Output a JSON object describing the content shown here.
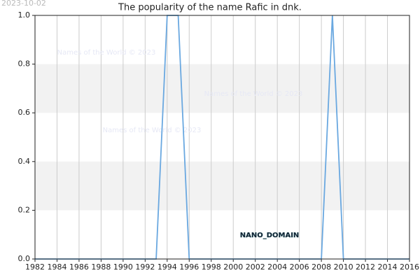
{
  "chart_data": {
    "type": "line",
    "title": "The popularity of the name Rafic in dnk.",
    "date_stamp": "2023-10-02",
    "watermarks": [
      "Names of the World © 2023",
      "Names of the World © 2023",
      "Names of the World © 2023"
    ],
    "annotation": "NANO_DOMAIN",
    "x": [
      1982,
      1983,
      1984,
      1985,
      1986,
      1987,
      1988,
      1989,
      1990,
      1991,
      1992,
      1993,
      1994,
      1995,
      1996,
      1997,
      1998,
      1999,
      2000,
      2001,
      2002,
      2003,
      2004,
      2005,
      2006,
      2007,
      2008,
      2009,
      2010,
      2011,
      2012,
      2013,
      2014,
      2015,
      2016
    ],
    "series": [
      {
        "color": "#6aa8e0",
        "values": [
          0,
          0,
          0,
          0,
          0,
          0,
          0,
          0,
          0,
          0,
          0,
          0,
          1,
          1,
          0,
          0,
          0,
          0,
          0,
          0,
          0,
          0,
          0,
          0,
          0,
          0,
          0,
          1,
          0,
          0,
          0,
          0,
          0,
          0,
          0
        ]
      }
    ],
    "xlim": [
      1982,
      2016
    ],
    "xticks": [
      1982,
      1984,
      1986,
      1988,
      1990,
      1992,
      1994,
      1996,
      1998,
      2000,
      2002,
      2004,
      2006,
      2008,
      2010,
      2012,
      2014,
      2016
    ],
    "ylim": [
      0,
      1
    ],
    "yticks": [
      {
        "value": 0,
        "label": "0.0"
      },
      {
        "value": 0.2,
        "label": "0.2"
      },
      {
        "value": 0.4,
        "label": "0.4"
      },
      {
        "value": 0.6,
        "label": "0.6"
      },
      {
        "value": 0.8,
        "label": "0.8"
      },
      {
        "value": 1,
        "label": "1.0"
      }
    ],
    "shaded_bands": [
      [
        0.2,
        0.4
      ],
      [
        0.6,
        0.8
      ]
    ],
    "grid": true
  }
}
